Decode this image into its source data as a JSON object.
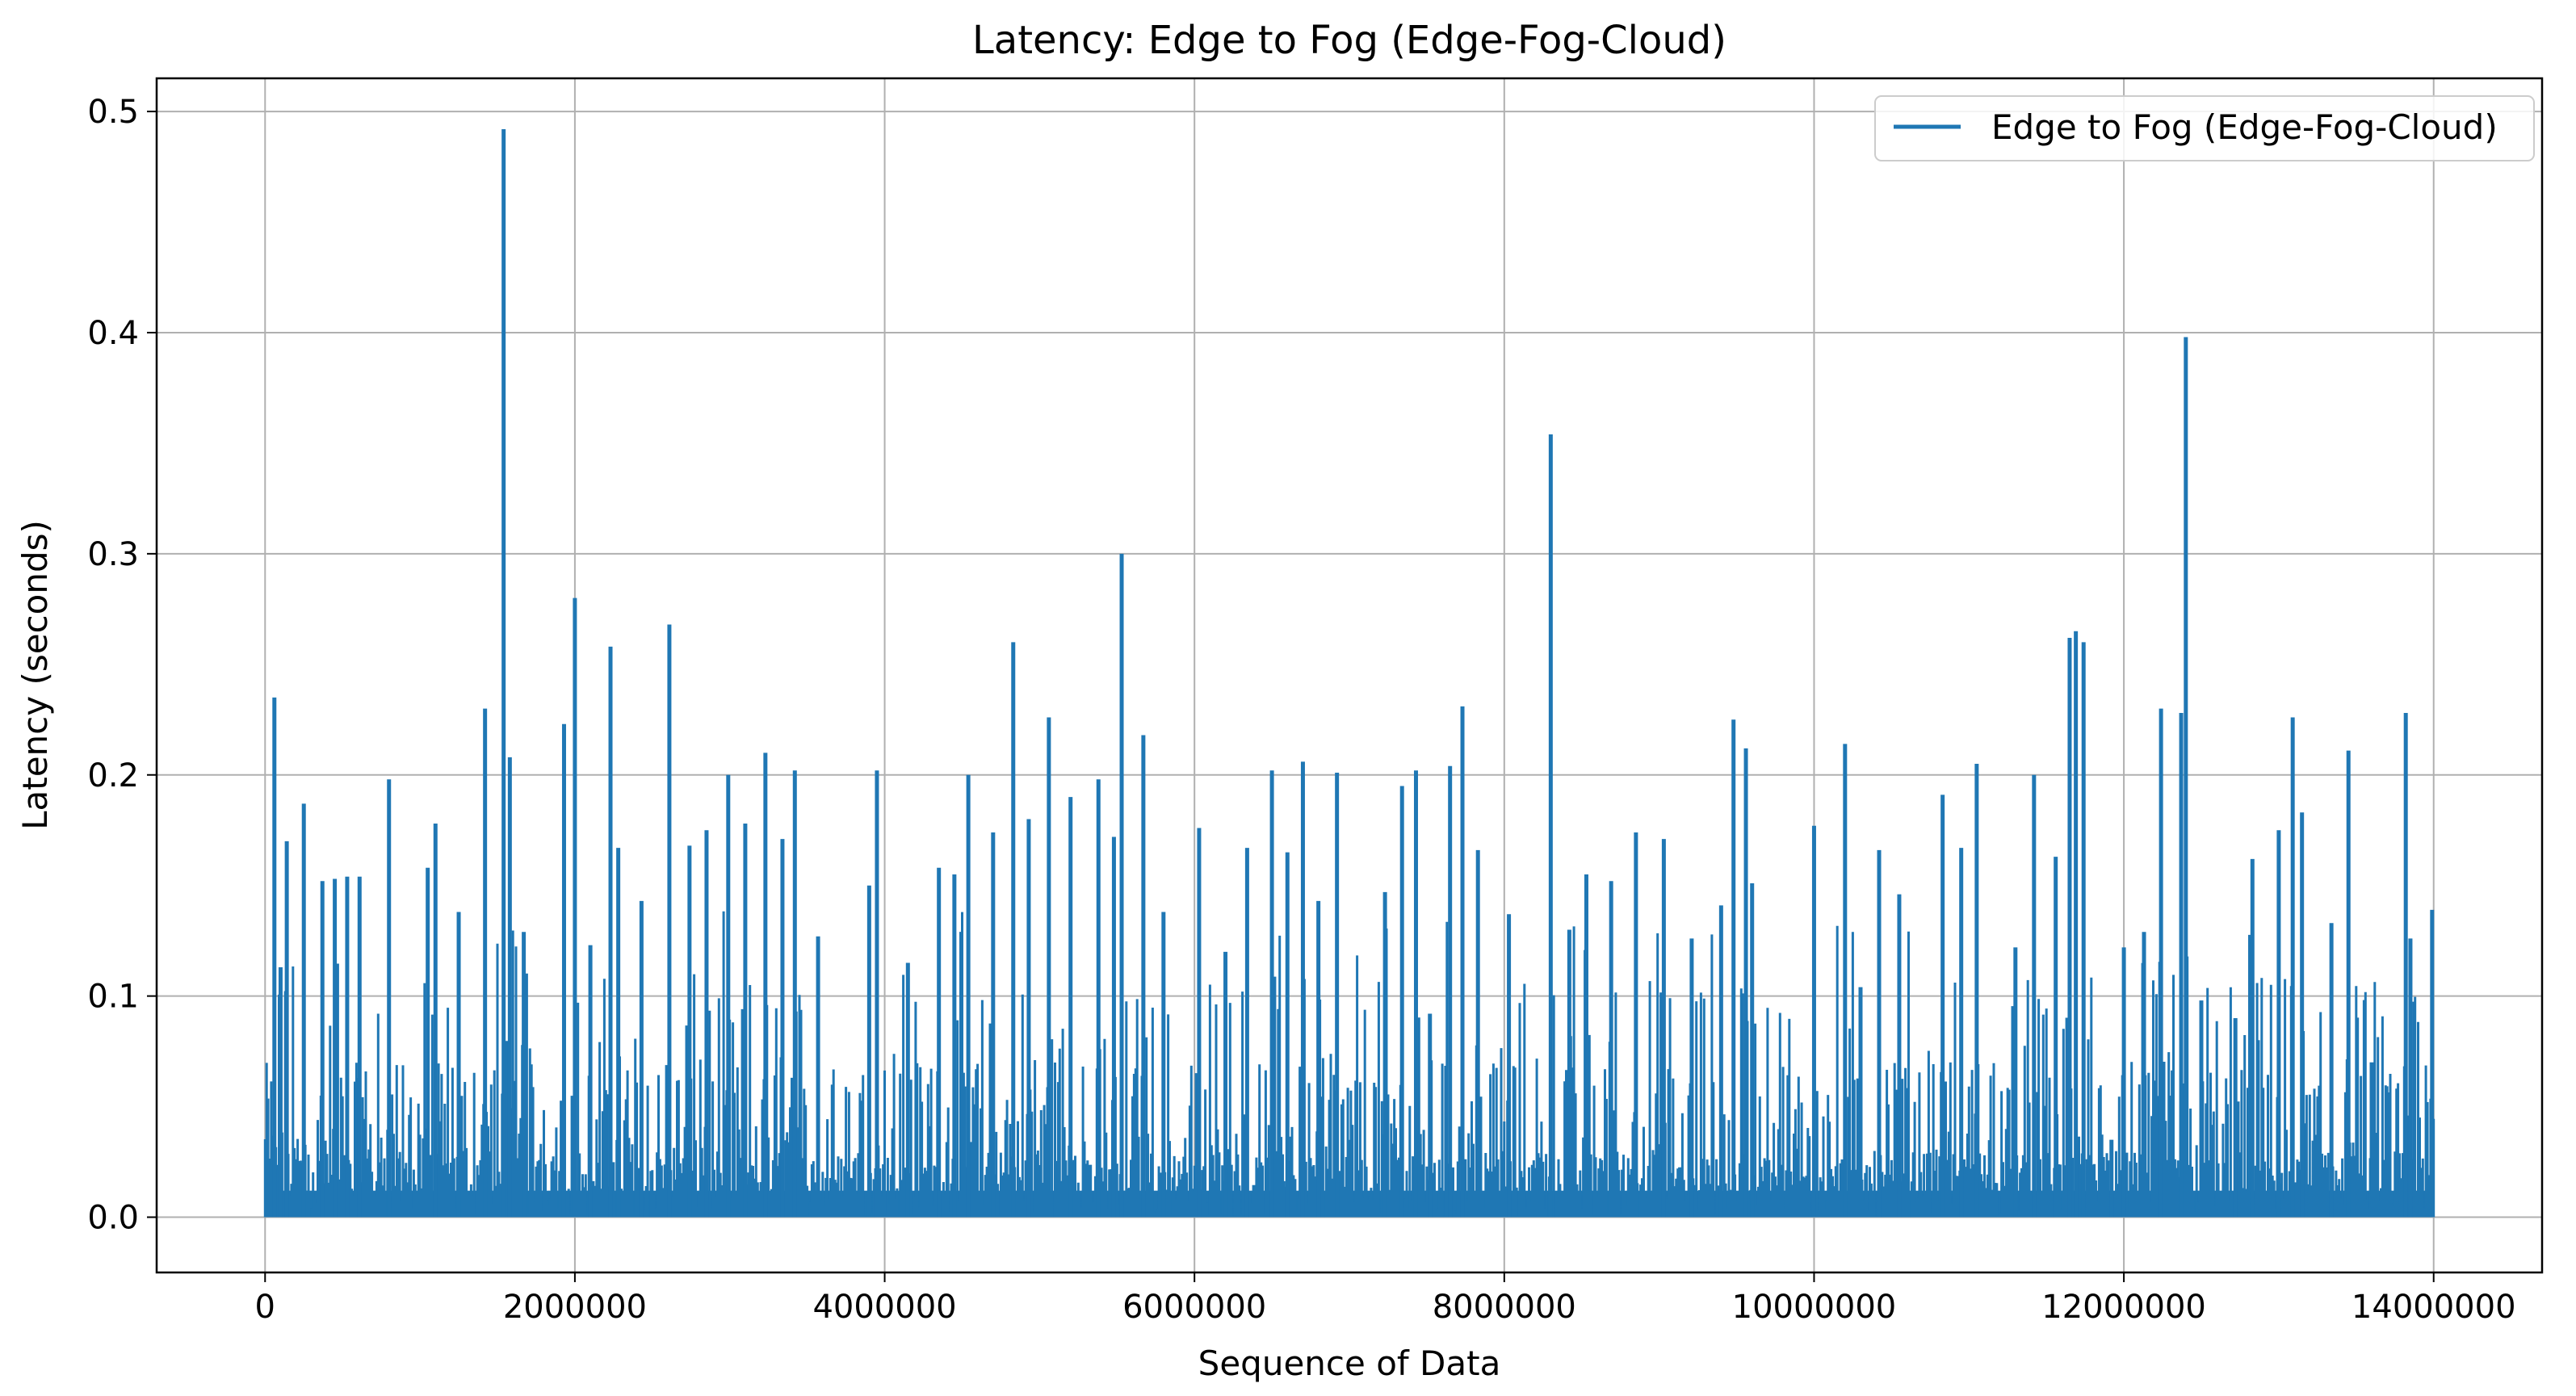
{
  "chart_data": {
    "type": "line",
    "title": "Latency: Edge to Fog (Edge-Fog-Cloud)",
    "xlabel": "Sequence of Data",
    "ylabel": "Latency (seconds)",
    "xlim": [
      -700000,
      14700000
    ],
    "ylim": [
      -0.025,
      0.515
    ],
    "x_ticks": [
      0,
      2000000,
      4000000,
      6000000,
      8000000,
      10000000,
      12000000,
      14000000
    ],
    "x_tick_labels": [
      "0",
      "2000000",
      "4000000",
      "6000000",
      "8000000",
      "10000000",
      "12000000",
      "14000000"
    ],
    "y_ticks": [
      0.0,
      0.1,
      0.2,
      0.3,
      0.4,
      0.5
    ],
    "y_tick_labels": [
      "0.0",
      "0.1",
      "0.2",
      "0.3",
      "0.4",
      "0.5"
    ],
    "grid": true,
    "legend_position": "top-right",
    "colors": {
      "series": "#1f77b4",
      "grid": "#b0b0b0"
    },
    "series": [
      {
        "name": "Edge to Fog (Edge-Fog-Cloud)",
        "x_start": 0,
        "x_end": 14000000,
        "baseline_max": 0.012,
        "spikes": [
          {
            "x": 60000,
            "y": 0.235
          },
          {
            "x": 100000,
            "y": 0.113
          },
          {
            "x": 140000,
            "y": 0.17
          },
          {
            "x": 250000,
            "y": 0.187
          },
          {
            "x": 370000,
            "y": 0.152
          },
          {
            "x": 450000,
            "y": 0.153
          },
          {
            "x": 530000,
            "y": 0.154
          },
          {
            "x": 610000,
            "y": 0.154
          },
          {
            "x": 800000,
            "y": 0.198
          },
          {
            "x": 1050000,
            "y": 0.158
          },
          {
            "x": 1100000,
            "y": 0.178
          },
          {
            "x": 1250000,
            "y": 0.138
          },
          {
            "x": 1420000,
            "y": 0.23
          },
          {
            "x": 1540000,
            "y": 0.492
          },
          {
            "x": 1580000,
            "y": 0.208
          },
          {
            "x": 1670000,
            "y": 0.129
          },
          {
            "x": 1930000,
            "y": 0.223
          },
          {
            "x": 2000000,
            "y": 0.28
          },
          {
            "x": 2100000,
            "y": 0.123
          },
          {
            "x": 2230000,
            "y": 0.258
          },
          {
            "x": 2280000,
            "y": 0.167
          },
          {
            "x": 2430000,
            "y": 0.143
          },
          {
            "x": 2610000,
            "y": 0.268
          },
          {
            "x": 2740000,
            "y": 0.168
          },
          {
            "x": 2850000,
            "y": 0.175
          },
          {
            "x": 2990000,
            "y": 0.2
          },
          {
            "x": 3100000,
            "y": 0.178
          },
          {
            "x": 3230000,
            "y": 0.21
          },
          {
            "x": 3340000,
            "y": 0.171
          },
          {
            "x": 3420000,
            "y": 0.202
          },
          {
            "x": 3570000,
            "y": 0.127
          },
          {
            "x": 3900000,
            "y": 0.15
          },
          {
            "x": 3950000,
            "y": 0.202
          },
          {
            "x": 4150000,
            "y": 0.115
          },
          {
            "x": 4350000,
            "y": 0.158
          },
          {
            "x": 4450000,
            "y": 0.155
          },
          {
            "x": 4540000,
            "y": 0.2
          },
          {
            "x": 4700000,
            "y": 0.174
          },
          {
            "x": 4830000,
            "y": 0.26
          },
          {
            "x": 4930000,
            "y": 0.18
          },
          {
            "x": 5060000,
            "y": 0.226
          },
          {
            "x": 5200000,
            "y": 0.19
          },
          {
            "x": 5380000,
            "y": 0.198
          },
          {
            "x": 5480000,
            "y": 0.172
          },
          {
            "x": 5530000,
            "y": 0.3
          },
          {
            "x": 5670000,
            "y": 0.218
          },
          {
            "x": 5800000,
            "y": 0.138
          },
          {
            "x": 6030000,
            "y": 0.176
          },
          {
            "x": 6200000,
            "y": 0.12
          },
          {
            "x": 6340000,
            "y": 0.167
          },
          {
            "x": 6500000,
            "y": 0.202
          },
          {
            "x": 6600000,
            "y": 0.165
          },
          {
            "x": 6700000,
            "y": 0.206
          },
          {
            "x": 6800000,
            "y": 0.143
          },
          {
            "x": 6920000,
            "y": 0.201
          },
          {
            "x": 7230000,
            "y": 0.147
          },
          {
            "x": 7340000,
            "y": 0.195
          },
          {
            "x": 7430000,
            "y": 0.202
          },
          {
            "x": 7520000,
            "y": 0.092
          },
          {
            "x": 7650000,
            "y": 0.204
          },
          {
            "x": 7730000,
            "y": 0.231
          },
          {
            "x": 7830000,
            "y": 0.166
          },
          {
            "x": 8030000,
            "y": 0.137
          },
          {
            "x": 8300000,
            "y": 0.354
          },
          {
            "x": 8420000,
            "y": 0.13
          },
          {
            "x": 8530000,
            "y": 0.155
          },
          {
            "x": 8690000,
            "y": 0.152
          },
          {
            "x": 8850000,
            "y": 0.174
          },
          {
            "x": 9030000,
            "y": 0.171
          },
          {
            "x": 9210000,
            "y": 0.126
          },
          {
            "x": 9400000,
            "y": 0.141
          },
          {
            "x": 9480000,
            "y": 0.225
          },
          {
            "x": 9560000,
            "y": 0.212
          },
          {
            "x": 9600000,
            "y": 0.151
          },
          {
            "x": 10000000,
            "y": 0.177
          },
          {
            "x": 10200000,
            "y": 0.214
          },
          {
            "x": 10300000,
            "y": 0.104
          },
          {
            "x": 10420000,
            "y": 0.166
          },
          {
            "x": 10550000,
            "y": 0.146
          },
          {
            "x": 10830000,
            "y": 0.191
          },
          {
            "x": 10950000,
            "y": 0.167
          },
          {
            "x": 11050000,
            "y": 0.205
          },
          {
            "x": 11300000,
            "y": 0.122
          },
          {
            "x": 11420000,
            "y": 0.2
          },
          {
            "x": 11560000,
            "y": 0.163
          },
          {
            "x": 11650000,
            "y": 0.262
          },
          {
            "x": 11690000,
            "y": 0.265
          },
          {
            "x": 11740000,
            "y": 0.26
          },
          {
            "x": 11920000,
            "y": 0.035
          },
          {
            "x": 12000000,
            "y": 0.122
          },
          {
            "x": 12130000,
            "y": 0.129
          },
          {
            "x": 12240000,
            "y": 0.23
          },
          {
            "x": 12370000,
            "y": 0.228
          },
          {
            "x": 12400000,
            "y": 0.398
          },
          {
            "x": 12500000,
            "y": 0.098
          },
          {
            "x": 12720000,
            "y": 0.09
          },
          {
            "x": 12830000,
            "y": 0.162
          },
          {
            "x": 13000000,
            "y": 0.175
          },
          {
            "x": 13090000,
            "y": 0.226
          },
          {
            "x": 13150000,
            "y": 0.183
          },
          {
            "x": 13340000,
            "y": 0.133
          },
          {
            "x": 13450000,
            "y": 0.211
          },
          {
            "x": 13600000,
            "y": 0.07
          },
          {
            "x": 13820000,
            "y": 0.228
          },
          {
            "x": 13850000,
            "y": 0.126
          },
          {
            "x": 13990000,
            "y": 0.139
          }
        ]
      }
    ]
  }
}
